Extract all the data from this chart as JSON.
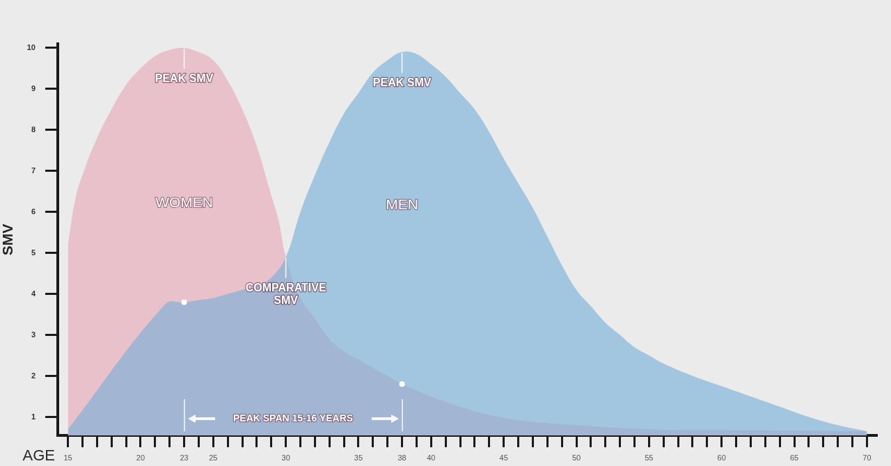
{
  "chart_data": {
    "type": "area",
    "xlabel": "AGE",
    "ylabel": "SMV",
    "series": [
      {
        "name": "WOMEN",
        "color": "#e9c1ca",
        "x": [
          15,
          15.5,
          16,
          17,
          18,
          19,
          20,
          21,
          22,
          23,
          24,
          25,
          26,
          27,
          28,
          29,
          29.5,
          30,
          31,
          32,
          33,
          34,
          35,
          36,
          37,
          38,
          40,
          42,
          44,
          46,
          48,
          50,
          55,
          60,
          70
        ],
        "values": [
          5.2,
          6.3,
          6.9,
          7.8,
          8.5,
          9.1,
          9.5,
          9.8,
          9.95,
          10,
          9.9,
          9.7,
          9.2,
          8.5,
          7.6,
          6.4,
          5.8,
          4.9,
          3.9,
          3.4,
          2.9,
          2.6,
          2.4,
          2.2,
          2.0,
          1.8,
          1.5,
          1.25,
          1.05,
          0.92,
          0.85,
          0.8,
          0.7,
          0.68,
          0.65
        ]
      },
      {
        "name": "MEN",
        "color": "#a3c6e0",
        "x": [
          15,
          21.7,
          23,
          24,
          25,
          26,
          27,
          28,
          29,
          30,
          31,
          32,
          33,
          34,
          35,
          36,
          37,
          38,
          39,
          40,
          41,
          42,
          43,
          44,
          45,
          46,
          47,
          48,
          49,
          50,
          51,
          52,
          53,
          54,
          55,
          56,
          58,
          60,
          62,
          64,
          66,
          68,
          70
        ],
        "values": [
          0.7,
          3.75,
          3.8,
          3.85,
          3.9,
          4.0,
          4.1,
          4.2,
          4.4,
          4.9,
          6.0,
          6.9,
          7.7,
          8.4,
          8.9,
          9.4,
          9.7,
          9.9,
          9.85,
          9.6,
          9.3,
          8.9,
          8.5,
          7.95,
          7.3,
          6.7,
          6.1,
          5.4,
          4.7,
          4.1,
          3.7,
          3.3,
          3.0,
          2.7,
          2.5,
          2.3,
          2.0,
          1.75,
          1.5,
          1.25,
          1.0,
          0.8,
          0.65
        ]
      },
      {
        "type": "scatter",
        "color": "#ffffff",
        "marker": "circle",
        "x": [
          23,
          38
        ],
        "values": [
          3.8,
          1.8
        ]
      }
    ],
    "xlim": [
      14.3,
      70.7
    ],
    "xticks": [
      15,
      {
        "value": 16,
        "label": null
      },
      {
        "value": 17,
        "label": null
      },
      {
        "value": 18,
        "label": null
      },
      {
        "value": 19,
        "label": null
      },
      20,
      {
        "value": 21,
        "label": null
      },
      {
        "value": 22,
        "label": null
      },
      23,
      {
        "value": 24,
        "label": null
      },
      25,
      {
        "value": 26,
        "label": null
      },
      {
        "value": 27,
        "label": null
      },
      {
        "value": 28,
        "label": null
      },
      {
        "value": 29,
        "label": null
      },
      30,
      {
        "value": 31,
        "label": null
      },
      {
        "value": 32,
        "label": null
      },
      {
        "value": 33,
        "label": null
      },
      {
        "value": 34,
        "label": null
      },
      35,
      {
        "value": 36,
        "label": null
      },
      {
        "value": 37,
        "label": null
      },
      38,
      {
        "value": 39,
        "label": null
      },
      40,
      {
        "value": 41,
        "label": null
      },
      {
        "value": 42,
        "label": null
      },
      {
        "value": 43,
        "label": null
      },
      {
        "value": 44,
        "label": null
      },
      45,
      {
        "value": 46,
        "label": null
      },
      {
        "value": 47,
        "label": null
      },
      {
        "value": 48,
        "label": null
      },
      {
        "value": 49,
        "label": null
      },
      50,
      {
        "value": 51,
        "label": null
      },
      {
        "value": 52,
        "label": null
      },
      {
        "value": 53,
        "label": null
      },
      {
        "value": 54,
        "label": null
      },
      55,
      {
        "value": 56,
        "label": null
      },
      {
        "value": 57,
        "label": null
      },
      {
        "value": 58,
        "label": null
      },
      {
        "value": 59,
        "label": null
      },
      60,
      {
        "value": 61,
        "label": null
      },
      {
        "value": 62,
        "label": null
      },
      {
        "value": 63,
        "label": null
      },
      {
        "value": 64,
        "label": null
      },
      65,
      {
        "value": 66,
        "label": null
      },
      {
        "value": 67,
        "label": null
      },
      {
        "value": 68,
        "label": null
      },
      {
        "value": 69,
        "label": null
      },
      70
    ],
    "ylim": [
      0.55,
      10.1
    ],
    "yticks": [
      1,
      2,
      3,
      4,
      5,
      6,
      7,
      8,
      9,
      10
    ],
    "annotations": [
      {
        "text": "PEAK SMV",
        "x": 23,
        "y": 10
      },
      {
        "text": "PEAK SMV",
        "x": 38,
        "y": 9.9
      },
      {
        "text": "COMPARATIVE SMV",
        "x": 30,
        "y": 4.9
      },
      "PEAK SPAN 15-16 YEARS"
    ]
  }
}
